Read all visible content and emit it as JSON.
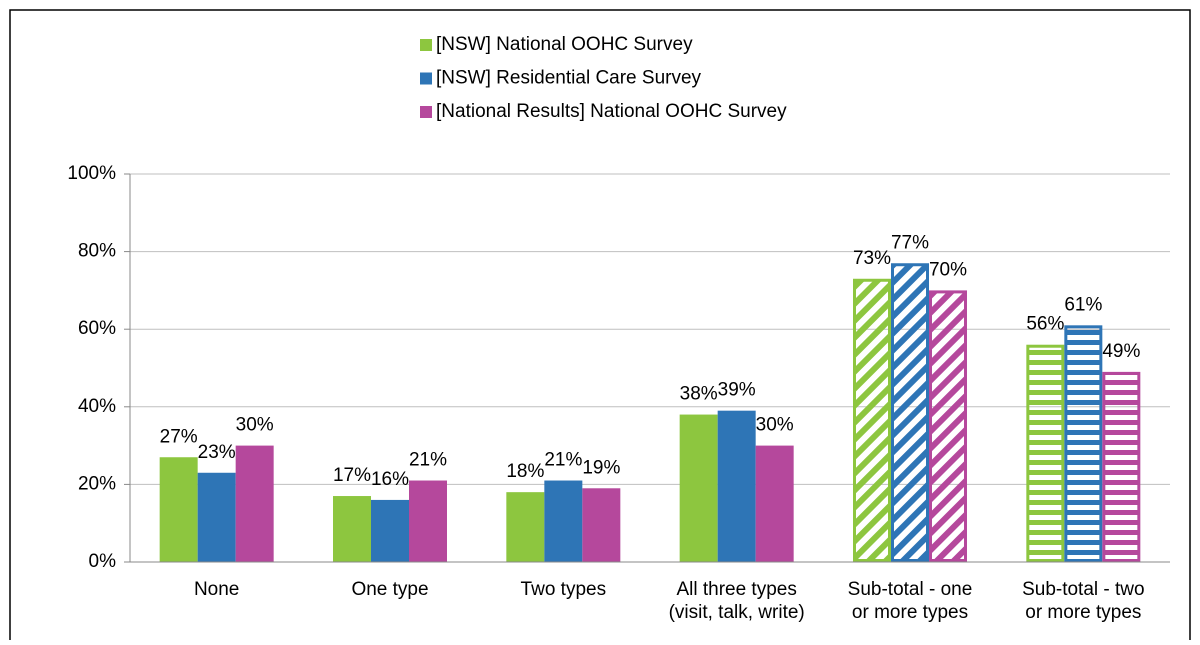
{
  "chart_data": {
    "type": "bar",
    "categories": [
      "None",
      "One type",
      "Two types",
      [
        "All three types",
        "(visit, talk, write)"
      ],
      [
        "Sub-total - one",
        "or more types"
      ],
      [
        "Sub-total - two",
        "or more types"
      ]
    ],
    "fill_styles": [
      "solid",
      "solid",
      "solid",
      "solid",
      "diagonal",
      "horizontal"
    ],
    "series": [
      {
        "name": "[NSW] National OOHC Survey",
        "color": "#8dc63f",
        "values": [
          27,
          17,
          18,
          38,
          73,
          56
        ],
        "value_labels": [
          "27%",
          "17%",
          "18%",
          "38%",
          "73%",
          "56%"
        ]
      },
      {
        "name": "[NSW] Residential Care Survey",
        "color": "#2e75b6",
        "values": [
          23,
          16,
          21,
          39,
          77,
          61
        ],
        "value_labels": [
          "23%",
          "16%",
          "21%",
          "39%",
          "77%",
          "61%"
        ]
      },
      {
        "name": "[National Results] National OOHC Survey",
        "color": "#b5489c",
        "values": [
          30,
          21,
          19,
          30,
          70,
          49
        ],
        "value_labels": [
          "30%",
          "21%",
          "19%",
          "30%",
          "70%",
          "49%"
        ]
      }
    ],
    "ylim": [
      0,
      100
    ],
    "yticks": [
      {
        "value": 0,
        "label": "0%"
      },
      {
        "value": 20,
        "label": "20%"
      },
      {
        "value": 40,
        "label": "40%"
      },
      {
        "value": 60,
        "label": "60%"
      },
      {
        "value": 80,
        "label": "80%"
      },
      {
        "value": 100,
        "label": "100%"
      }
    ],
    "grid": true,
    "legend": "top"
  }
}
